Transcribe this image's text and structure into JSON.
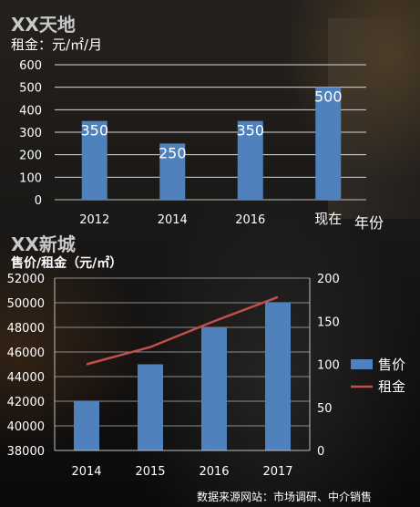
{
  "chart_data": [
    {
      "type": "bar",
      "title": "XX天地",
      "ylabel": "租金：元/㎡/月",
      "xlabel": "年份",
      "categories": [
        "2012",
        "2014",
        "2016",
        "现在"
      ],
      "values": [
        350,
        250,
        350,
        500
      ],
      "ylim": [
        0,
        600
      ],
      "yticks": [
        0,
        100,
        200,
        300,
        400,
        500,
        600
      ],
      "grid": true,
      "bar_color": "#4f81bd"
    },
    {
      "type": "bar",
      "title": "XX新城",
      "ylabel": "售价/租金（元/㎡）",
      "categories": [
        "2014",
        "2015",
        "2016",
        "2017"
      ],
      "series": [
        {
          "name": "售价",
          "type": "bar",
          "axis": "left",
          "values": [
            42000,
            45000,
            48000,
            50000
          ],
          "color": "#4f81bd"
        },
        {
          "name": "租金",
          "type": "line",
          "axis": "right",
          "values": [
            100,
            120,
            150,
            178
          ],
          "color": "#c0504d"
        }
      ],
      "ylim": [
        38000,
        52000
      ],
      "yticks": [
        38000,
        40000,
        42000,
        44000,
        46000,
        48000,
        50000,
        52000
      ],
      "y2lim": [
        0,
        200
      ],
      "y2ticks": [
        0,
        50,
        100,
        150,
        200
      ],
      "grid": true,
      "legend_position": "right"
    }
  ],
  "source_note": "数据来源网站：市场调研、中介销售"
}
